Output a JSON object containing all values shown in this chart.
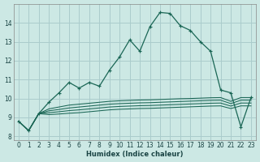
{
  "xlabel": "Humidex (Indice chaleur)",
  "bg_color": "#cce8e4",
  "grid_color": "#aacccc",
  "line_color": "#1a6655",
  "xlim": [
    -0.5,
    23.5
  ],
  "ylim": [
    7.8,
    15.0
  ],
  "xticks": [
    0,
    1,
    2,
    3,
    4,
    5,
    6,
    7,
    8,
    9,
    10,
    11,
    12,
    13,
    14,
    15,
    16,
    17,
    18,
    19,
    20,
    21,
    22,
    23
  ],
  "yticks": [
    8,
    9,
    10,
    11,
    12,
    13,
    14
  ],
  "main_y": [
    8.8,
    8.3,
    9.2,
    9.8,
    10.3,
    10.85,
    10.55,
    10.85,
    10.65,
    11.5,
    12.2,
    13.1,
    12.5,
    13.8,
    14.55,
    14.5,
    13.85,
    13.6,
    13.0,
    12.5,
    10.45,
    10.3,
    8.5,
    10.05
  ],
  "flat1_y": [
    8.8,
    8.3,
    9.2,
    9.45,
    9.55,
    9.65,
    9.7,
    9.75,
    9.8,
    9.85,
    9.88,
    9.9,
    9.92,
    9.93,
    9.95,
    9.97,
    9.99,
    10.0,
    10.02,
    10.04,
    10.05,
    9.85,
    10.05,
    10.05
  ],
  "flat2_y": [
    8.8,
    8.3,
    9.2,
    9.35,
    9.42,
    9.5,
    9.55,
    9.6,
    9.65,
    9.7,
    9.73,
    9.75,
    9.77,
    9.78,
    9.8,
    9.82,
    9.84,
    9.86,
    9.88,
    9.9,
    9.91,
    9.73,
    9.91,
    9.91
  ],
  "flat3_y": [
    8.8,
    8.3,
    9.2,
    9.25,
    9.3,
    9.36,
    9.4,
    9.45,
    9.5,
    9.55,
    9.58,
    9.6,
    9.62,
    9.63,
    9.65,
    9.67,
    9.69,
    9.71,
    9.73,
    9.75,
    9.76,
    9.6,
    9.76,
    9.76
  ],
  "flat4_y": [
    8.8,
    8.3,
    9.2,
    9.15,
    9.18,
    9.22,
    9.25,
    9.3,
    9.35,
    9.4,
    9.43,
    9.45,
    9.47,
    9.48,
    9.5,
    9.52,
    9.54,
    9.56,
    9.58,
    9.6,
    9.61,
    9.47,
    9.61,
    9.61
  ]
}
